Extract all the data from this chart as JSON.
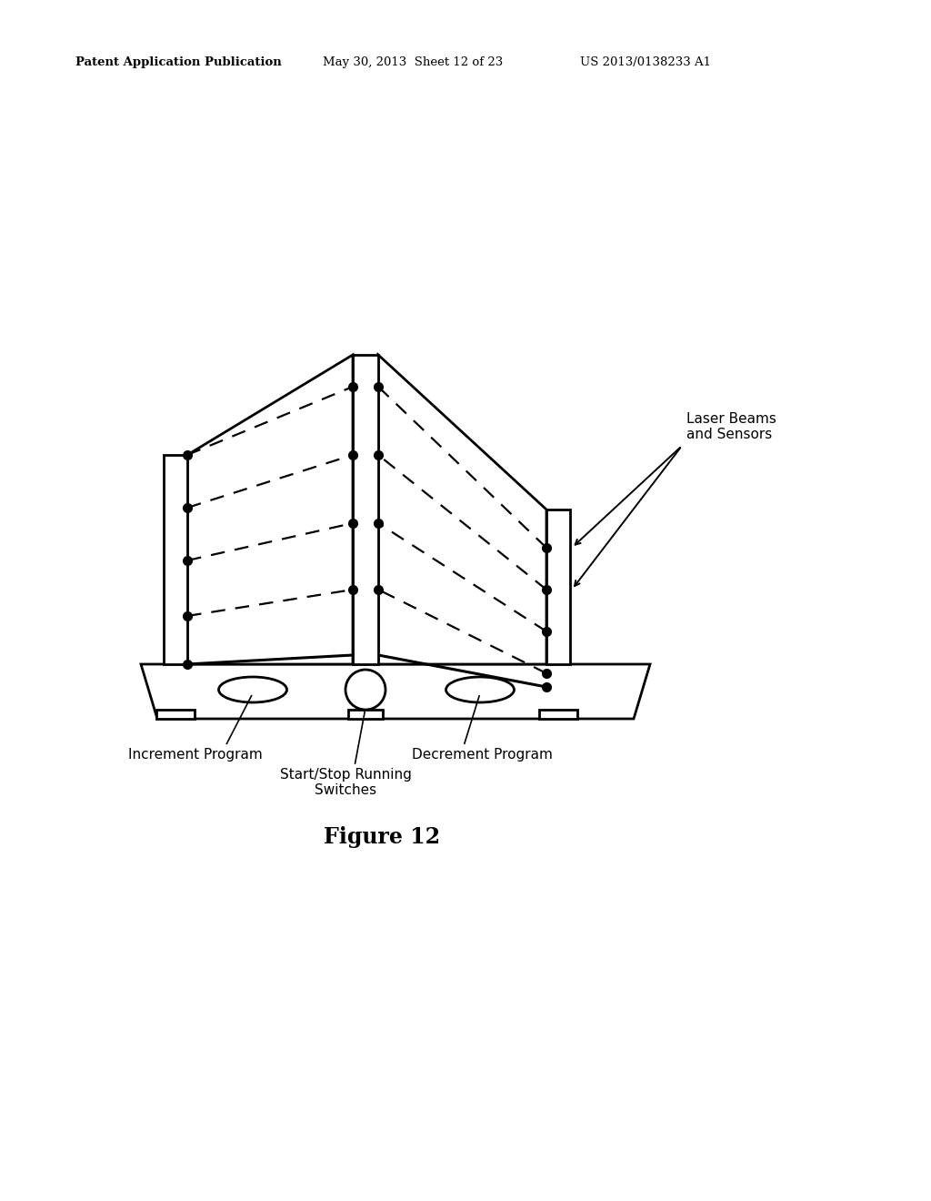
{
  "header_left": "Patent Application Publication",
  "header_middle": "May 30, 2013  Sheet 12 of 23",
  "header_right": "US 2013/0138233 A1",
  "bg_color": "#ffffff",
  "text_color": "#000000",
  "label_increment": "Increment Program",
  "label_decrement": "Decrement Program",
  "label_startstop": "Start/Stop Running\nSwitches",
  "label_laser": "Laser Beams\nand Sensors",
  "figure_label": "Figure 12"
}
